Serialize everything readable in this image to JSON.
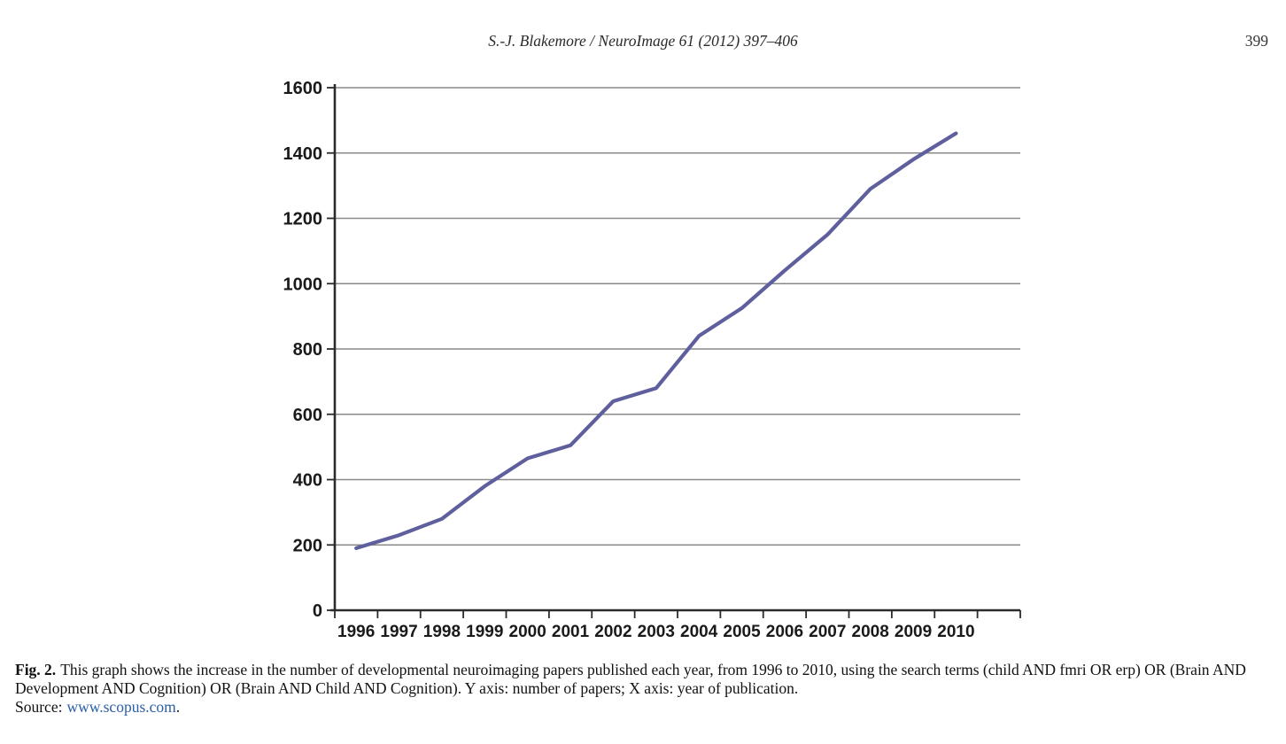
{
  "page": {
    "header": {
      "running_head": "S.-J. Blakemore / NeuroImage 61 (2012) 397–406",
      "page_number": "399"
    },
    "caption": {
      "label": "Fig. 2.",
      "text": "This graph shows the increase in the number of developmental neuroimaging papers published each year, from 1996 to 2010, using the search terms (child AND fmri OR erp) OR (Brain AND Development AND Cognition) OR (Brain AND Child AND Cognition). Y axis: number of papers; X axis: year of publication.",
      "source_label": "Source:",
      "source_link": "www.scopus.com",
      "source_suffix": "."
    }
  },
  "chart_data": {
    "type": "line",
    "title": "",
    "categories": [
      "1996",
      "1997",
      "1998",
      "1999",
      "2000",
      "2001",
      "2002",
      "2003",
      "2004",
      "2005",
      "2006",
      "2007",
      "2008",
      "2009",
      "2010"
    ],
    "values": [
      190,
      230,
      280,
      380,
      465,
      505,
      640,
      680,
      840,
      925,
      1040,
      1150,
      1290,
      1380,
      1460
    ],
    "xlabel": "year of publication",
    "ylabel": "number of papers",
    "ylim": [
      0,
      1600
    ],
    "ytick_step": 200,
    "grid": true,
    "legend": false,
    "line_color": "#5f5f9e",
    "gridline_color": "#8a8a8a",
    "axis_color": "#2b2b2b",
    "label_color": "#1a1a1a"
  }
}
